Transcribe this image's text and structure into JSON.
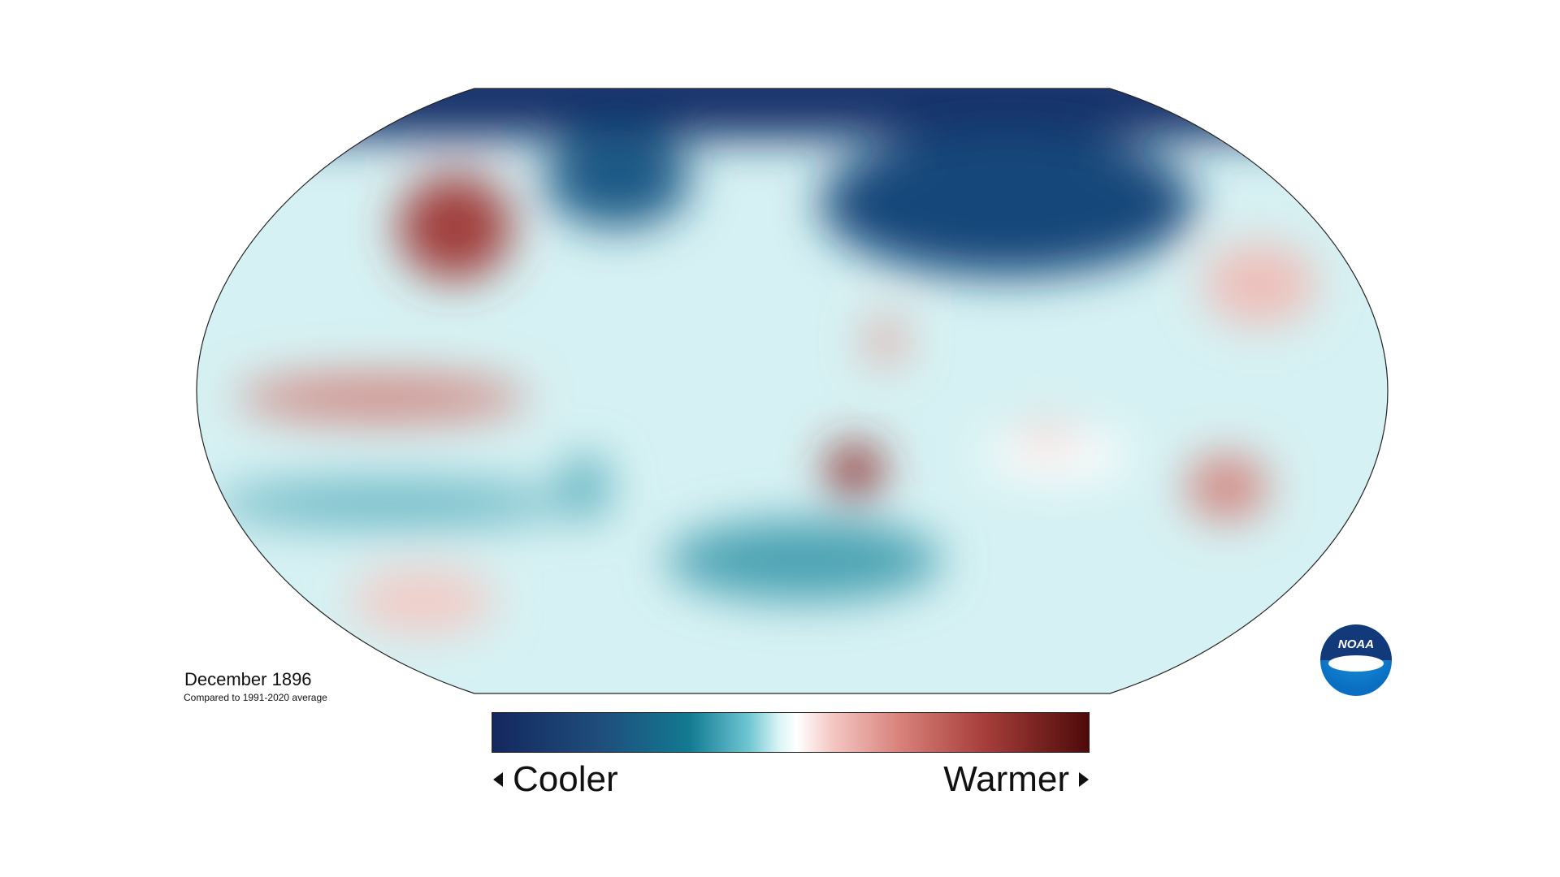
{
  "map": {
    "title": "December 1896",
    "subtitle": "Compared to 1991-2020 average",
    "legend": {
      "low_label": "Cooler",
      "high_label": "Warmer"
    },
    "logo": "NOAA"
  }
}
